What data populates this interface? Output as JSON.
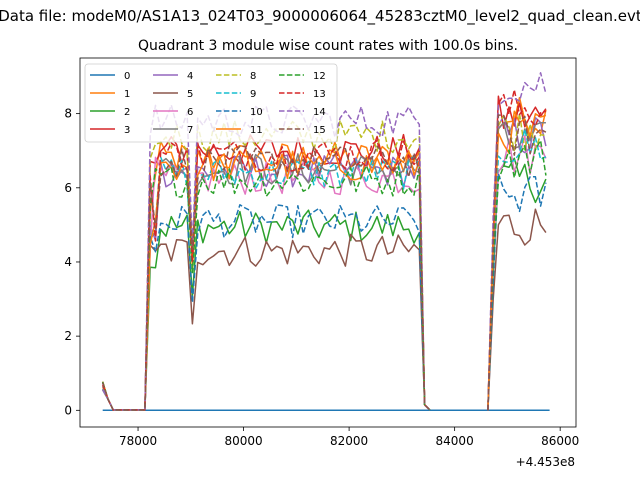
{
  "chart_data": {
    "type": "line",
    "suptitle": "Data file: modeM0/AS1A13_024T03_9000006064_45283cztM0_level2_quad_clean.evt",
    "title": "Quadrant 3 module wise count rates with 100.0s bins.",
    "xlabel": "",
    "ylabel": "",
    "x_offset_label": "+4.453e8",
    "x_ticks": [
      "78000",
      "80000",
      "82000",
      "84000",
      "86000"
    ],
    "y_ticks": [
      "0",
      "2",
      "4",
      "6",
      "8"
    ],
    "xlim": [
      76900,
      86300
    ],
    "ylim": [
      -0.45,
      9.5
    ],
    "grid": false,
    "legend_position": "top-left",
    "legend_columns": 4,
    "x_segments": [
      {
        "start": 77330,
        "end": 83530
      },
      {
        "start": 84630,
        "end": 85800
      }
    ],
    "series": [
      {
        "name": "0",
        "color": "#1f77b4",
        "dash": "solid",
        "zero": true
      },
      {
        "name": "1",
        "color": "#ff7f0e",
        "dash": "solid",
        "level": 6.8,
        "seg2": 7.9
      },
      {
        "name": "2",
        "color": "#2ca02c",
        "dash": "solid",
        "level": 4.95,
        "seg2": 6.2
      },
      {
        "name": "3",
        "color": "#d62728",
        "dash": "solid",
        "level": 7.0,
        "seg2": 7.9
      },
      {
        "name": "4",
        "color": "#9467bd",
        "dash": "solid",
        "level": 6.45,
        "seg2": 7.4
      },
      {
        "name": "5",
        "color": "#8c564b",
        "dash": "solid",
        "level": 4.3,
        "seg2": 5.0
      },
      {
        "name": "6",
        "color": "#e377c2",
        "dash": "solid",
        "level": 6.25,
        "seg2": 6.9
      },
      {
        "name": "7",
        "color": "#7f7f7f",
        "dash": "solid",
        "level": 6.5,
        "seg2": 7.2
      },
      {
        "name": "8",
        "color": "#bcbd22",
        "dash": "dashed",
        "level": 7.4,
        "seg2": 7.6
      },
      {
        "name": "9",
        "color": "#17becf",
        "dash": "dashed",
        "level": 6.4,
        "seg2": 7.1
      },
      {
        "name": "10",
        "color": "#1f77b4",
        "dash": "dashed",
        "level": 5.1,
        "seg2": 5.8
      },
      {
        "name": "11",
        "color": "#ff7f0e",
        "dash": "solid",
        "level": 6.6,
        "seg2": 7.5
      },
      {
        "name": "12",
        "color": "#2ca02c",
        "dash": "dashed",
        "level": 6.2,
        "seg2": 6.8
      },
      {
        "name": "13",
        "color": "#d62728",
        "dash": "dashed",
        "level": 6.9,
        "seg2": 8.1
      },
      {
        "name": "14",
        "color": "#9467bd",
        "dash": "dashed",
        "level": 7.8,
        "seg2": 8.8
      },
      {
        "name": "15",
        "color": "#8c564b",
        "dash": "dashed",
        "level": 6.7,
        "seg2": 7.4
      }
    ]
  }
}
